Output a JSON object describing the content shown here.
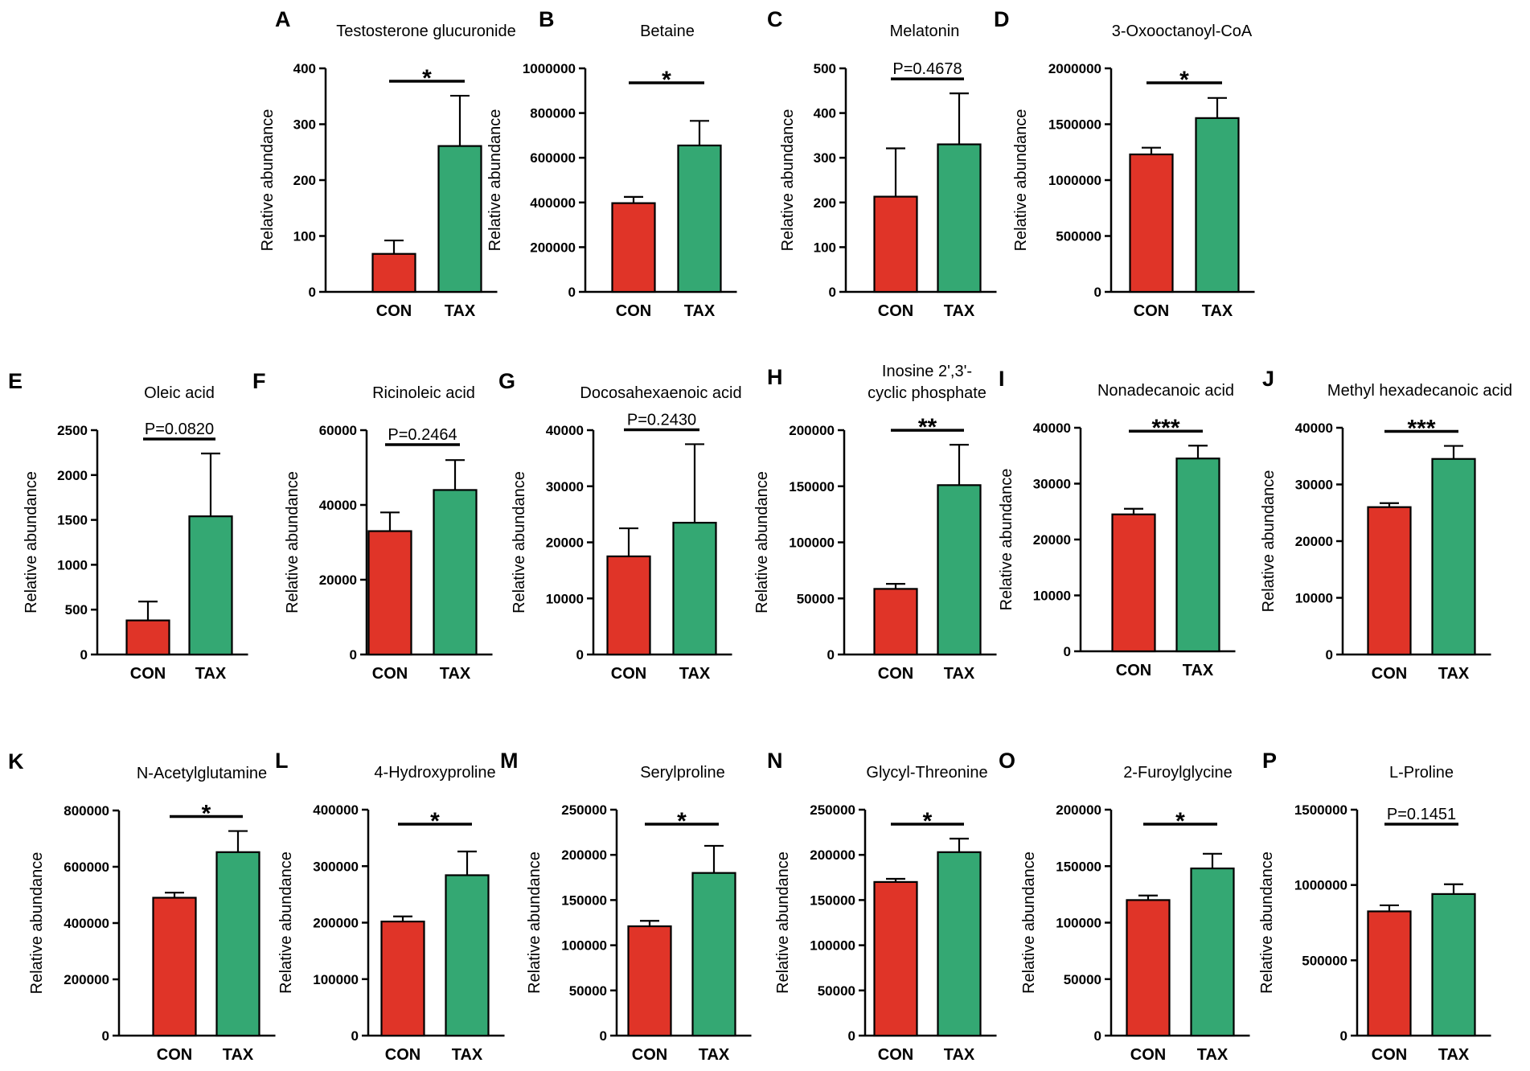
{
  "figure": {
    "ylabel": "Relative abundance",
    "categories": [
      "CON",
      "TAX"
    ],
    "colors": {
      "CON": "#E03428",
      "TAX": "#34A873"
    }
  },
  "chart_data": [
    {
      "label": "A",
      "type": "bar",
      "title": [
        "Testosterone glucuronide"
      ],
      "categories": [
        "CON",
        "TAX"
      ],
      "values": [
        68,
        261
      ],
      "errors": [
        24,
        90
      ],
      "ylim": [
        0,
        400
      ],
      "ticks": [
        "0",
        "100",
        "200",
        "300",
        "400"
      ],
      "ylabel": "Relative abundance",
      "significance": "*"
    },
    {
      "label": "B",
      "type": "bar",
      "title": [
        "Betaine"
      ],
      "categories": [
        "CON",
        "TAX"
      ],
      "values": [
        397000,
        655000
      ],
      "errors": [
        28000,
        110000
      ],
      "ylim": [
        0,
        1000000
      ],
      "ticks": [
        "0",
        "200000",
        "400000",
        "600000",
        "800000",
        "1000000"
      ],
      "ylabel": "Relative abundance",
      "significance": "*"
    },
    {
      "label": "C",
      "type": "bar",
      "title": [
        "Melatonin"
      ],
      "categories": [
        "CON",
        "TAX"
      ],
      "values": [
        213,
        330
      ],
      "errors": [
        108,
        114
      ],
      "ylim": [
        0,
        500
      ],
      "ticks": [
        "0",
        "100",
        "200",
        "300",
        "400",
        "500"
      ],
      "ylabel": "Relative abundance",
      "significance": "P=0.4678"
    },
    {
      "label": "D",
      "type": "bar",
      "title": [
        "3-Oxooctanoyl-CoA"
      ],
      "categories": [
        "CON",
        "TAX"
      ],
      "values": [
        1230000,
        1555000
      ],
      "errors": [
        60000,
        180000
      ],
      "ylim": [
        0,
        2000000
      ],
      "ticks": [
        "0",
        "500000",
        "1000000",
        "1500000",
        "2000000"
      ],
      "ylabel": "Relative abundance",
      "significance": "*"
    },
    {
      "label": "E",
      "type": "bar",
      "title": [
        "Oleic acid"
      ],
      "categories": [
        "CON",
        "TAX"
      ],
      "values": [
        380,
        1540
      ],
      "errors": [
        210,
        700
      ],
      "ylim": [
        0,
        2500
      ],
      "ticks": [
        "0",
        "500",
        "1000",
        "1500",
        "2000",
        "2500"
      ],
      "ylabel": "Relative abundance",
      "significance": "P=0.0820"
    },
    {
      "label": "F",
      "type": "bar",
      "title": [
        "Ricinoleic acid"
      ],
      "categories": [
        "CON",
        "TAX"
      ],
      "values": [
        33000,
        44000
      ],
      "errors": [
        5000,
        8000
      ],
      "ylim": [
        0,
        60000
      ],
      "ticks": [
        "0",
        "20000",
        "40000",
        "60000"
      ],
      "ylabel": "Relative abundance",
      "significance": "P=0.2464"
    },
    {
      "label": "G",
      "type": "bar",
      "title": [
        "Docosahexaenoic acid"
      ],
      "categories": [
        "CON",
        "TAX"
      ],
      "values": [
        17500,
        23500
      ],
      "errors": [
        5000,
        14000
      ],
      "ylim": [
        0,
        40000
      ],
      "ticks": [
        "0",
        "10000",
        "20000",
        "30000",
        "40000"
      ],
      "ylabel": "Relative abundance",
      "significance": "P=0.2430"
    },
    {
      "label": "H",
      "type": "bar",
      "title": [
        "Inosine 2',3'-",
        "cyclic phosphate"
      ],
      "categories": [
        "CON",
        "TAX"
      ],
      "values": [
        58500,
        151000
      ],
      "errors": [
        4500,
        36000
      ],
      "ylim": [
        0,
        200000
      ],
      "ticks": [
        "0",
        "50000",
        "100000",
        "150000",
        "200000"
      ],
      "ylabel": "Relative abundance",
      "significance": "**"
    },
    {
      "label": "I",
      "type": "bar",
      "title": [
        "Nonadecanoic acid"
      ],
      "categories": [
        "CON",
        "TAX"
      ],
      "values": [
        24500,
        34500
      ],
      "errors": [
        1000,
        2300
      ],
      "ylim": [
        0,
        40000
      ],
      "ticks": [
        "0",
        "10000",
        "20000",
        "30000",
        "40000"
      ],
      "ylabel": "Relative abundance",
      "significance": "***"
    },
    {
      "label": "J",
      "type": "bar",
      "title": [
        "Methyl hexadecanoic acid"
      ],
      "categories": [
        "CON",
        "TAX"
      ],
      "values": [
        26000,
        34500
      ],
      "errors": [
        700,
        2300
      ],
      "ylim": [
        0,
        40000
      ],
      "ticks": [
        "0",
        "10000",
        "20000",
        "30000",
        "40000"
      ],
      "ylabel": "Relative abundance",
      "significance": "***"
    },
    {
      "label": "K",
      "type": "bar",
      "title": [
        "N-Acetylglutamine"
      ],
      "categories": [
        "CON",
        "TAX"
      ],
      "values": [
        490000,
        652000
      ],
      "errors": [
        18000,
        75000
      ],
      "ylim": [
        0,
        800000
      ],
      "ticks": [
        "0",
        "200000",
        "400000",
        "600000",
        "800000"
      ],
      "ylabel": "Relative abundance",
      "significance": "*"
    },
    {
      "label": "L",
      "type": "bar",
      "title": [
        "4-Hydroxyproline"
      ],
      "categories": [
        "CON",
        "TAX"
      ],
      "values": [
        202000,
        284000
      ],
      "errors": [
        9000,
        42000
      ],
      "ylim": [
        0,
        400000
      ],
      "ticks": [
        "0",
        "100000",
        "200000",
        "300000",
        "400000"
      ],
      "ylabel": "Relative abundance",
      "significance": "*"
    },
    {
      "label": "M",
      "type": "bar",
      "title": [
        "Serylproline"
      ],
      "categories": [
        "CON",
        "TAX"
      ],
      "values": [
        121000,
        180000
      ],
      "errors": [
        6000,
        30000
      ],
      "ylim": [
        0,
        250000
      ],
      "ticks": [
        "0",
        "50000",
        "100000",
        "150000",
        "200000",
        "250000"
      ],
      "ylabel": "Relative abundance",
      "significance": "*"
    },
    {
      "label": "N",
      "type": "bar",
      "title": [
        "Glycyl-Threonine"
      ],
      "categories": [
        "CON",
        "TAX"
      ],
      "values": [
        170000,
        203000
      ],
      "errors": [
        3500,
        15000
      ],
      "ylim": [
        0,
        250000
      ],
      "ticks": [
        "0",
        "50000",
        "100000",
        "150000",
        "200000",
        "250000"
      ],
      "ylabel": "Relative abundance",
      "significance": "*"
    },
    {
      "label": "O",
      "type": "bar",
      "title": [
        "2-Furoylglycine"
      ],
      "categories": [
        "CON",
        "TAX"
      ],
      "values": [
        120000,
        148000
      ],
      "errors": [
        4000,
        13000
      ],
      "ylim": [
        0,
        200000
      ],
      "ticks": [
        "0",
        "50000",
        "100000",
        "150000",
        "200000"
      ],
      "ylabel": "Relative abundance",
      "significance": "*"
    },
    {
      "label": "P",
      "type": "bar",
      "title": [
        "L-Proline"
      ],
      "categories": [
        "CON",
        "TAX"
      ],
      "values": [
        825000,
        940000
      ],
      "errors": [
        40000,
        65000
      ],
      "ylim": [
        0,
        1500000
      ],
      "ticks": [
        "0",
        "500000",
        "1000000",
        "1500000"
      ],
      "ylabel": "Relative abundance",
      "significance": "P=0.1451"
    }
  ]
}
